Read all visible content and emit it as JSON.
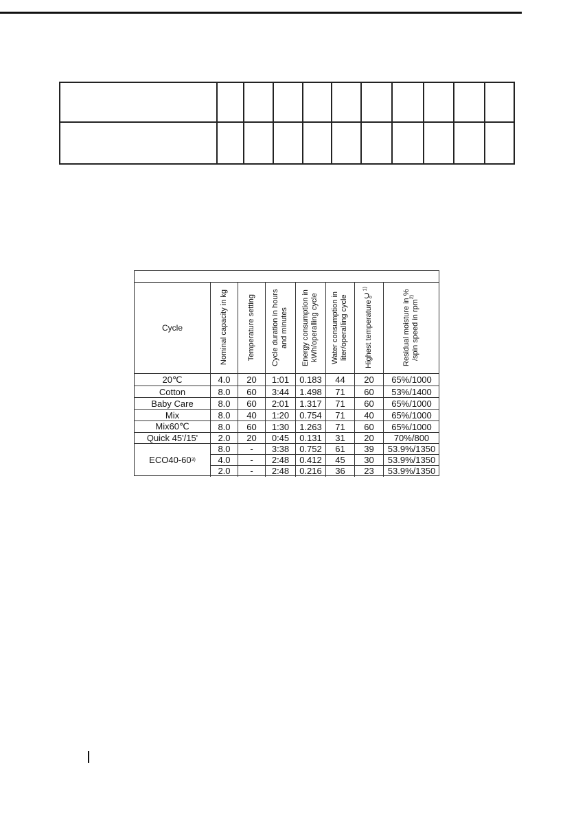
{
  "table": {
    "header": {
      "cycle": "Cycle",
      "columns": [
        "Nominal capacity in kg",
        "Temperature  setting",
        "Cycle duration in hours and minutes",
        "Energy consumption in kWh/operalling cycle",
        "Water consumption in liter/operalling cycle",
        "Highest temperature℃",
        "Residual moisture in % /spin speed in rpm"
      ],
      "footnote_marks": {
        "highest_temp": "1)",
        "residual": "2)",
        "eco": "3)"
      }
    },
    "rows": [
      {
        "cycle": "20℃",
        "values": [
          "4.0",
          "20",
          "1:01",
          "0.183",
          "44",
          "20",
          "65%/1000"
        ]
      },
      {
        "cycle": "Cotton",
        "values": [
          "8.0",
          "60",
          "3:44",
          "1.498",
          "71",
          "60",
          "53%/1400"
        ]
      },
      {
        "cycle": "Baby Care",
        "values": [
          "8.0",
          "60",
          "2:01",
          "1.317",
          "71",
          "60",
          "65%/1000"
        ]
      },
      {
        "cycle": "Mix",
        "values": [
          "8.0",
          "40",
          "1:20",
          "0.754",
          "71",
          "40",
          "65%/1000"
        ]
      },
      {
        "cycle": "Mix60℃",
        "values": [
          "8.0",
          "60",
          "1:30",
          "1.263",
          "71",
          "60",
          "65%/1000"
        ]
      },
      {
        "cycle": "Quick 45'/15'",
        "values": [
          "2.0",
          "20",
          "0:45",
          "0.131",
          "31",
          "20",
          "70%/800"
        ]
      },
      {
        "cycle": "ECO40-60",
        "values": [
          "8.0",
          "-",
          "3:38",
          "0.752",
          "61",
          "39",
          "53.9%/1350"
        ]
      },
      {
        "cycle": "",
        "values": [
          "4.0",
          "-",
          "2:48",
          "0.412",
          "45",
          "30",
          "53.9%/1350"
        ]
      },
      {
        "cycle": "",
        "values": [
          "2.0",
          "-",
          "2:48",
          "0.216",
          "36",
          "23",
          "53.9%/1350"
        ]
      }
    ]
  }
}
